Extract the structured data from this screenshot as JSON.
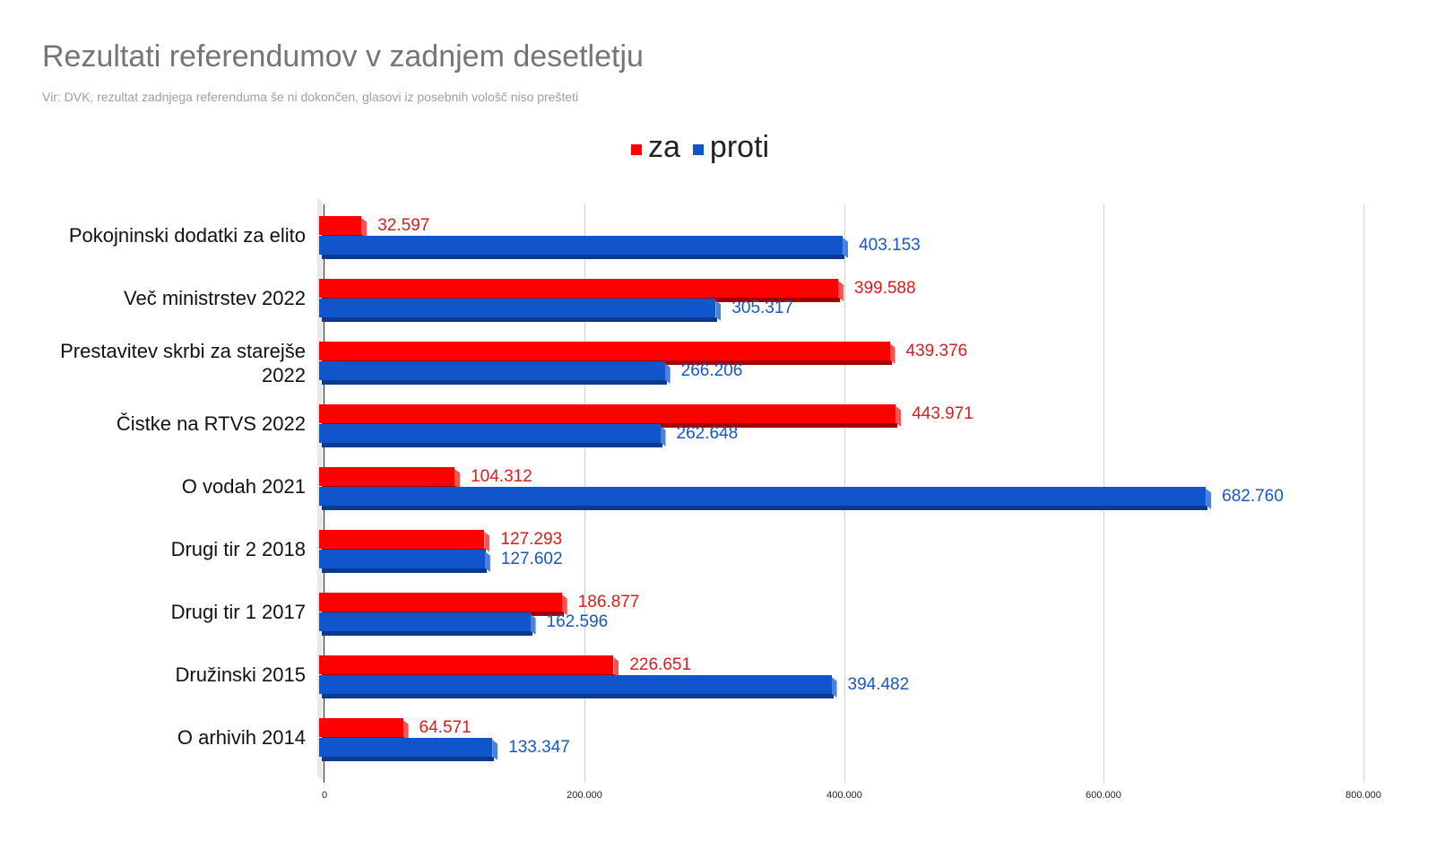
{
  "chart_data": {
    "type": "bar",
    "orientation": "horizontal",
    "style": "3d",
    "title": "Rezultati referendumov v zadnjem desetletju",
    "subtitle": "Vir: DVK, rezultat zadnjega referenduma še ni dokončen, glasovi iz posebnih vološč niso prešteti",
    "xlabel": "",
    "ylabel": "",
    "xlim": [
      0,
      800000
    ],
    "x_ticks": [
      "0",
      "200.000",
      "400.000",
      "600.000",
      "800.000"
    ],
    "grid": true,
    "legend_position": "top",
    "categories": [
      "Pokojninski dodatki za elito",
      "Več ministrstev 2022",
      "Prestavitev skrbi za starejše 2022",
      "Čistke na RTVS 2022",
      "O vodah 2021",
      "Drugi tir 2 2018",
      "Drugi tir  1 2017",
      "Družinski 2015",
      "O arhivih 2014"
    ],
    "series": [
      {
        "name": "za",
        "color": "#ff0000",
        "values": [
          32597,
          399588,
          439376,
          443971,
          104312,
          127293,
          186877,
          226651,
          64571
        ],
        "labels": [
          "32.597",
          "399.588",
          "439.376",
          "443.971",
          "104.312",
          "127.293",
          "186.877",
          "226.651",
          "64.571"
        ]
      },
      {
        "name": "proti",
        "color": "#1155cc",
        "values": [
          403153,
          305317,
          266206,
          262648,
          682760,
          127602,
          162596,
          394482,
          133347
        ],
        "labels": [
          "403.153",
          "305.317",
          "266.206",
          "262.648",
          "682.760",
          "127.602",
          "162.596",
          "394.482",
          "133.347"
        ]
      }
    ]
  },
  "header": {
    "title": "Rezultati referendumov v zadnjem desetletju",
    "subtitle": "Vir: DVK, rezultat zadnjega referenduma še ni dokončen, glasovi iz posebnih vološč niso prešteti"
  },
  "legend": {
    "items": [
      {
        "label": "za",
        "color": "#ff0000"
      },
      {
        "label": "proti",
        "color": "#1155cc"
      }
    ]
  },
  "axis": {
    "ticks": [
      "0",
      "200.000",
      "400.000",
      "600.000",
      "800.000"
    ]
  }
}
